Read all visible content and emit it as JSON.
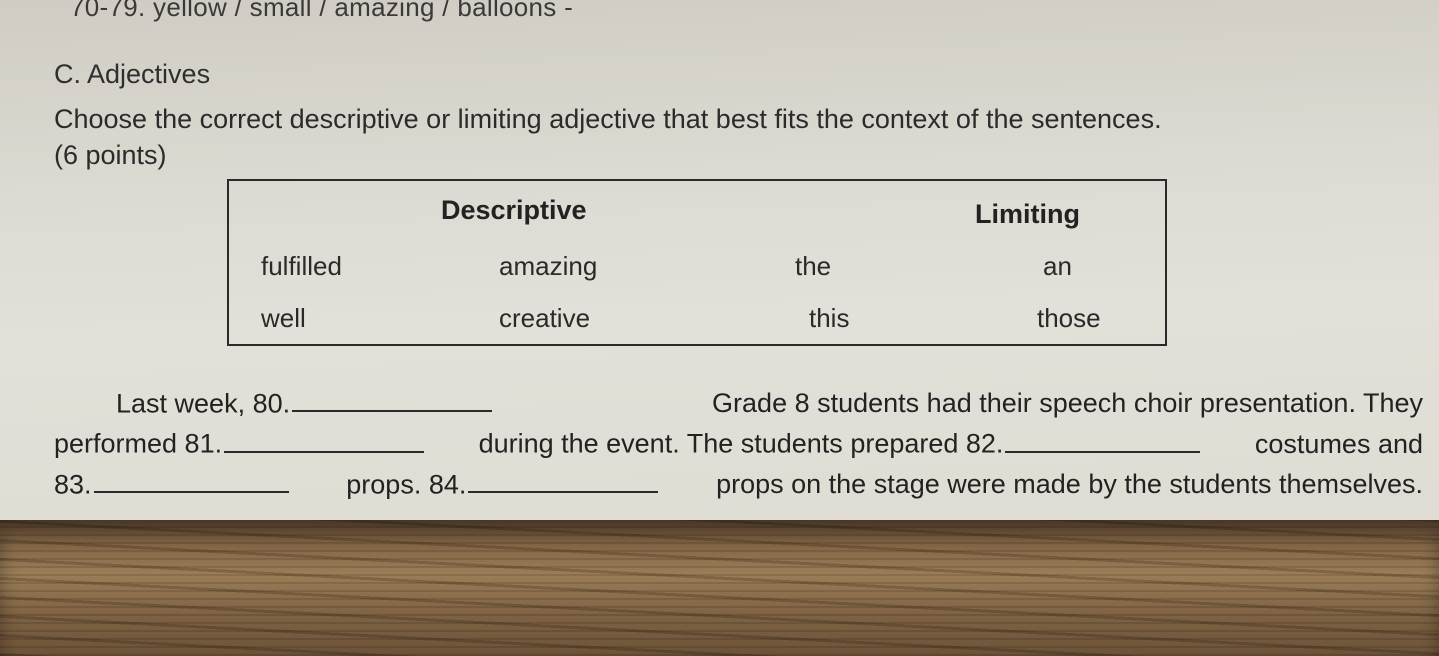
{
  "partial_top": "70-79. yellow / small / amazing / balloons -",
  "section": {
    "heading": "C. Adjectives",
    "instruction": "Choose the correct descriptive or limiting adjective that best fits the context of the sentences.",
    "points": "(6 points)"
  },
  "wordbox": {
    "head_descriptive": "Descriptive",
    "head_limiting": "Limiting",
    "cells": {
      "fulfilled": "fulfilled",
      "amazing": "amazing",
      "the": "the",
      "an": "an",
      "well": "well",
      "creative": "creative",
      "this": "this",
      "those": "those"
    }
  },
  "para": {
    "l1a": "Last  week,  80.",
    "l1b": "Grade  8  students  had  their  speech  choir  presentation.  They",
    "l2a": "performed 81.",
    "l2b": "during the event. The students prepared 82.",
    "l2c": "costumes and",
    "l3a": "83.",
    "l3b": "props. 84.",
    "l3c": "props on the stage were made by the students themselves."
  },
  "ghost": {
    "g1": "",
    "g2": ""
  }
}
